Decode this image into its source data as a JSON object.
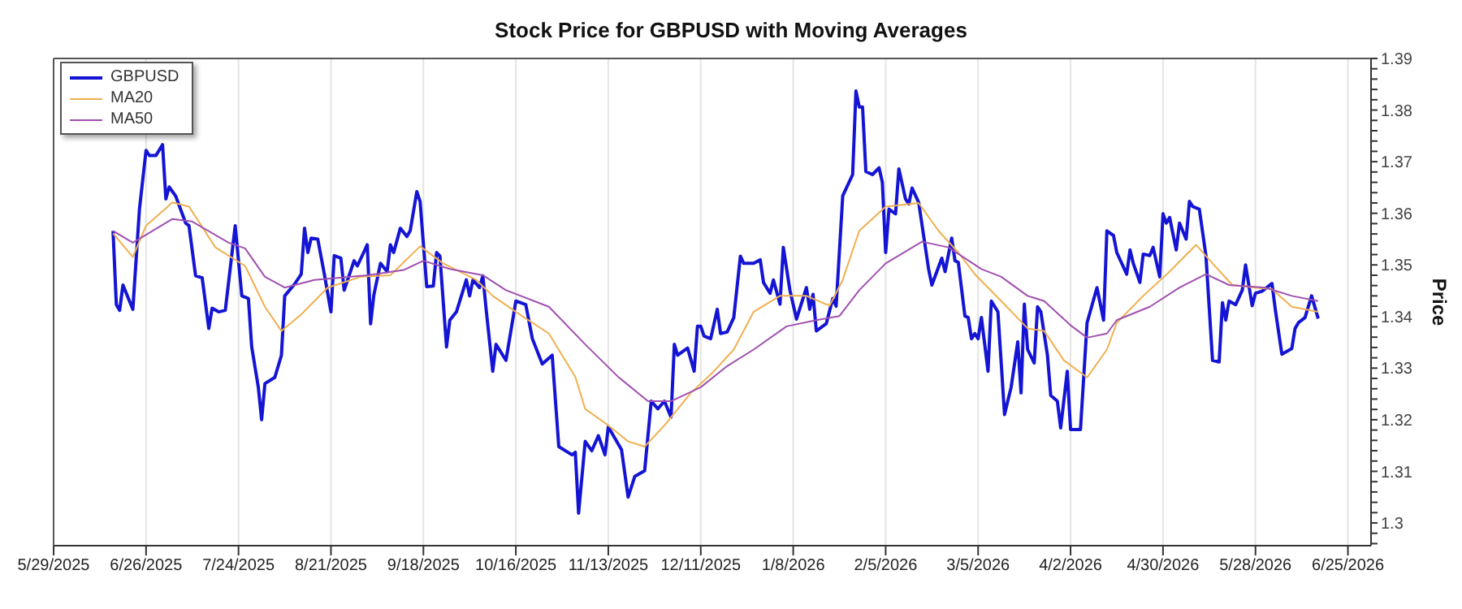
{
  "chart_data": {
    "type": "line",
    "title": "Stock Price for GBPUSD with Moving Averages",
    "ylabel": "Price",
    "xlim": [
      "2025-05-29",
      "2026-07-02"
    ],
    "ylim": [
      1.2956,
      1.39
    ],
    "xticks": [
      {
        "value": "2025-05-29",
        "label": "5/29/2025"
      },
      {
        "value": "2025-06-26",
        "label": "6/26/2025"
      },
      {
        "value": "2025-07-24",
        "label": "7/24/2025"
      },
      {
        "value": "2025-08-21",
        "label": "8/21/2025"
      },
      {
        "value": "2025-09-18",
        "label": "9/18/2025"
      },
      {
        "value": "2025-10-16",
        "label": "10/16/2025"
      },
      {
        "value": "2025-11-13",
        "label": "11/13/2025"
      },
      {
        "value": "2025-12-11",
        "label": "12/11/2025"
      },
      {
        "value": "2026-01-08",
        "label": "1/8/2026"
      },
      {
        "value": "2026-02-05",
        "label": "2/5/2026"
      },
      {
        "value": "2026-03-05",
        "label": "3/5/2026"
      },
      {
        "value": "2026-04-02",
        "label": "4/2/2026"
      },
      {
        "value": "2026-04-30",
        "label": "4/30/2026"
      },
      {
        "value": "2026-05-28",
        "label": "5/28/2026"
      },
      {
        "value": "2026-06-25",
        "label": "6/25/2026"
      }
    ],
    "yticks": [
      {
        "value": 1.296,
        "label": null
      },
      {
        "value": 1.298,
        "label": null
      },
      1.3,
      {
        "value": 1.302,
        "label": null
      },
      {
        "value": 1.304,
        "label": null
      },
      {
        "value": 1.306,
        "label": null
      },
      {
        "value": 1.308,
        "label": null
      },
      1.31,
      {
        "value": 1.312,
        "label": null
      },
      {
        "value": 1.314,
        "label": null
      },
      {
        "value": 1.316,
        "label": null
      },
      {
        "value": 1.318,
        "label": null
      },
      1.32,
      {
        "value": 1.322,
        "label": null
      },
      {
        "value": 1.324,
        "label": null
      },
      {
        "value": 1.326,
        "label": null
      },
      {
        "value": 1.328,
        "label": null
      },
      1.33,
      {
        "value": 1.332,
        "label": null
      },
      {
        "value": 1.334,
        "label": null
      },
      {
        "value": 1.336,
        "label": null
      },
      {
        "value": 1.338,
        "label": null
      },
      1.34,
      {
        "value": 1.342,
        "label": null
      },
      {
        "value": 1.344,
        "label": null
      },
      {
        "value": 1.346,
        "label": null
      },
      {
        "value": 1.348,
        "label": null
      },
      1.35,
      {
        "value": 1.352,
        "label": null
      },
      {
        "value": 1.354,
        "label": null
      },
      {
        "value": 1.356,
        "label": null
      },
      {
        "value": 1.358,
        "label": null
      },
      1.36,
      {
        "value": 1.362,
        "label": null
      },
      {
        "value": 1.364,
        "label": null
      },
      {
        "value": 1.366,
        "label": null
      },
      {
        "value": 1.368,
        "label": null
      },
      1.37,
      {
        "value": 1.372,
        "label": null
      },
      {
        "value": 1.374,
        "label": null
      },
      {
        "value": 1.376,
        "label": null
      },
      {
        "value": 1.378,
        "label": null
      },
      1.38,
      {
        "value": 1.382,
        "label": null
      },
      {
        "value": 1.384,
        "label": null
      },
      {
        "value": 1.386,
        "label": null
      },
      {
        "value": 1.388,
        "label": null
      },
      1.39
    ],
    "grid": "x",
    "legend": "top left",
    "marker": "none",
    "line_style": "solid",
    "series": [
      {
        "name": "GBPUSD",
        "color": "#1414d4",
        "x": [
          "2025-06-16",
          "2025-06-17",
          "2025-06-18",
          "2025-06-19",
          "2025-06-22",
          "2025-06-24",
          "2025-06-26",
          "2025-06-27",
          "2025-06-29",
          "2025-07-01",
          "2025-07-02",
          "2025-07-03",
          "2025-07-05",
          "2025-07-08",
          "2025-07-09",
          "2025-07-11",
          "2025-07-13",
          "2025-07-15",
          "2025-07-16",
          "2025-07-18",
          "2025-07-20",
          "2025-07-23",
          "2025-07-25",
          "2025-07-27",
          "2025-07-28",
          "2025-07-30",
          "2025-07-31",
          "2025-08-01",
          "2025-08-04",
          "2025-08-06",
          "2025-08-07",
          "2025-08-10",
          "2025-08-12",
          "2025-08-13",
          "2025-08-14",
          "2025-08-15",
          "2025-08-17",
          "2025-08-19",
          "2025-08-21",
          "2025-08-22",
          "2025-08-24",
          "2025-08-25",
          "2025-08-28",
          "2025-08-29",
          "2025-09-01",
          "2025-09-02",
          "2025-09-03",
          "2025-09-05",
          "2025-09-07",
          "2025-09-08",
          "2025-09-09",
          "2025-09-11",
          "2025-09-13",
          "2025-09-14",
          "2025-09-16",
          "2025-09-17",
          "2025-09-19",
          "2025-09-21",
          "2025-09-22",
          "2025-09-23",
          "2025-09-25",
          "2025-09-26",
          "2025-09-28",
          "2025-10-01",
          "2025-10-02",
          "2025-10-03",
          "2025-10-05",
          "2025-10-06",
          "2025-10-07",
          "2025-10-09",
          "2025-10-10",
          "2025-10-13",
          "2025-10-16",
          "2025-10-19",
          "2025-10-21",
          "2025-10-24",
          "2025-10-27",
          "2025-10-29",
          "2025-11-02",
          "2025-11-03",
          "2025-11-04",
          "2025-11-06",
          "2025-11-08",
          "2025-11-10",
          "2025-11-12",
          "2025-11-13",
          "2025-11-17",
          "2025-11-19",
          "2025-11-21",
          "2025-11-24",
          "2025-11-26",
          "2025-11-28",
          "2025-11-30",
          "2025-12-02",
          "2025-12-03",
          "2025-12-04",
          "2025-12-07",
          "2025-12-09",
          "2025-12-10",
          "2025-12-11",
          "2025-12-12",
          "2025-12-14",
          "2025-12-16",
          "2025-12-17",
          "2025-12-19",
          "2025-12-21",
          "2025-12-23",
          "2025-12-24",
          "2025-12-27",
          "2025-12-29",
          "2025-12-30",
          "2026-01-01",
          "2026-01-02",
          "2026-01-04",
          "2026-01-05",
          "2026-01-07",
          "2026-01-09",
          "2026-01-12",
          "2026-01-13",
          "2026-01-14",
          "2026-01-15",
          "2026-01-18",
          "2026-01-20",
          "2026-01-21",
          "2026-01-23",
          "2026-01-26",
          "2026-01-27",
          "2026-01-28",
          "2026-01-29",
          "2026-01-30",
          "2026-02-01",
          "2026-02-03",
          "2026-02-04",
          "2026-02-05",
          "2026-02-06",
          "2026-02-08",
          "2026-02-09",
          "2026-02-11",
          "2026-02-12",
          "2026-02-13",
          "2026-02-15",
          "2026-02-18",
          "2026-02-19",
          "2026-02-22",
          "2026-02-23",
          "2026-02-25",
          "2026-02-26",
          "2026-02-27",
          "2026-03-01",
          "2026-03-02",
          "2026-03-03",
          "2026-03-04",
          "2026-03-05",
          "2026-03-06",
          "2026-03-08",
          "2026-03-09",
          "2026-03-11",
          "2026-03-13",
          "2026-03-15",
          "2026-03-17",
          "2026-03-18",
          "2026-03-19",
          "2026-03-20",
          "2026-03-22",
          "2026-03-23",
          "2026-03-24",
          "2026-03-26",
          "2026-03-27",
          "2026-03-29",
          "2026-03-30",
          "2026-04-01",
          "2026-04-02",
          "2026-04-05",
          "2026-04-07",
          "2026-04-10",
          "2026-04-12",
          "2026-04-13",
          "2026-04-15",
          "2026-04-16",
          "2026-04-19",
          "2026-04-20",
          "2026-04-21",
          "2026-04-23",
          "2026-04-24",
          "2026-04-26",
          "2026-04-27",
          "2026-04-29",
          "2026-04-30",
          "2026-05-01",
          "2026-05-02",
          "2026-05-04",
          "2026-05-05",
          "2026-05-07",
          "2026-05-08",
          "2026-05-09",
          "2026-05-11",
          "2026-05-13",
          "2026-05-15",
          "2026-05-17",
          "2026-05-18",
          "2026-05-19",
          "2026-05-20",
          "2026-05-22",
          "2026-05-24",
          "2026-05-25",
          "2026-05-27",
          "2026-05-28",
          "2026-05-30",
          "2026-06-02",
          "2026-06-03",
          "2026-06-05",
          "2026-06-08",
          "2026-06-09",
          "2026-06-10",
          "2026-06-12",
          "2026-06-14",
          "2026-06-16"
        ],
        "values": [
          1.3566,
          1.3423,
          1.3412,
          1.3461,
          1.3414,
          1.3608,
          1.3722,
          1.3712,
          1.3712,
          1.3733,
          1.3628,
          1.3651,
          1.3633,
          1.3581,
          1.3576,
          1.3479,
          1.3475,
          1.3377,
          1.3416,
          1.3409,
          1.3412,
          1.3576,
          1.344,
          1.3435,
          1.3341,
          1.3263,
          1.32,
          1.327,
          1.3282,
          1.3325,
          1.344,
          1.3463,
          1.3482,
          1.3571,
          1.3524,
          1.3552,
          1.355,
          1.3482,
          1.3409,
          1.3518,
          1.3513,
          1.3451,
          1.3508,
          1.3498,
          1.3539,
          1.3386,
          1.3442,
          1.3503,
          1.3487,
          1.3539,
          1.3524,
          1.3571,
          1.3555,
          1.3566,
          1.3642,
          1.3623,
          1.3458,
          1.3459,
          1.3524,
          1.3517,
          1.3341,
          1.3393,
          1.3409,
          1.3471,
          1.344,
          1.3471,
          1.3456,
          1.3479,
          1.3414,
          1.3294,
          1.3346,
          1.3315,
          1.343,
          1.3423,
          1.3357,
          1.3308,
          1.3325,
          1.3148,
          1.3132,
          1.3137,
          1.3019,
          1.3158,
          1.314,
          1.3169,
          1.3132,
          1.3186,
          1.3142,
          1.305,
          1.309,
          1.3101,
          1.3236,
          1.3221,
          1.3236,
          1.3205,
          1.3346,
          1.3325,
          1.3339,
          1.3294,
          1.3381,
          1.3381,
          1.3362,
          1.3357,
          1.3414,
          1.3367,
          1.337,
          1.3398,
          1.3517,
          1.3503,
          1.3503,
          1.351,
          1.3466,
          1.3445,
          1.3471,
          1.3424,
          1.3534,
          1.3451,
          1.3395,
          1.3456,
          1.3414,
          1.3443,
          1.3372,
          1.3386,
          1.3435,
          1.342,
          1.3634,
          1.3675,
          1.3837,
          1.3806,
          1.3806,
          1.3681,
          1.3675,
          1.3688,
          1.366,
          1.3524,
          1.3608,
          1.3599,
          1.3686,
          1.3628,
          1.3618,
          1.3649,
          1.3621,
          1.3492,
          1.3461,
          1.3513,
          1.3487,
          1.3552,
          1.3508,
          1.3505,
          1.3401,
          1.3398,
          1.3357,
          1.3367,
          1.3357,
          1.3398,
          1.3294,
          1.343,
          1.3409,
          1.321,
          1.3263,
          1.3351,
          1.3252,
          1.3424,
          1.3336,
          1.331,
          1.3419,
          1.3409,
          1.3325,
          1.3247,
          1.3236,
          1.3184,
          1.3294,
          1.3181,
          1.3181,
          1.3388,
          1.3456,
          1.3393,
          1.3566,
          1.3557,
          1.3524,
          1.3482,
          1.3529,
          1.3503,
          1.3466,
          1.3521,
          1.3518,
          1.3534,
          1.3477,
          1.3599,
          1.3581,
          1.3592,
          1.3529,
          1.3581,
          1.355,
          1.3623,
          1.3613,
          1.3608,
          1.3518,
          1.3315,
          1.3312,
          1.3427,
          1.3393,
          1.343,
          1.3423,
          1.3451,
          1.35,
          1.3421,
          1.3445,
          1.3449,
          1.3464,
          1.3414,
          1.3327,
          1.3338,
          1.3377,
          1.3388,
          1.3398,
          1.344,
          1.3396
        ]
      },
      {
        "name": "MA20",
        "color": "#f0b050",
        "x": [
          "2025-06-16",
          "2025-06-22",
          "2025-06-26",
          "2025-07-04",
          "2025-07-09",
          "2025-07-17",
          "2025-07-26",
          "2025-08-01",
          "2025-08-06",
          "2025-08-12",
          "2025-08-20",
          "2025-08-30",
          "2025-09-08",
          "2025-09-17",
          "2025-09-24",
          "2025-10-04",
          "2025-10-09",
          "2025-10-16",
          "2025-10-26",
          "2025-11-03",
          "2025-11-06",
          "2025-11-13",
          "2025-11-19",
          "2025-11-24",
          "2025-11-30",
          "2025-12-08",
          "2025-12-15",
          "2025-12-21",
          "2025-12-27",
          "2026-01-04",
          "2026-01-12",
          "2026-01-19",
          "2026-01-23",
          "2026-01-28",
          "2026-02-05",
          "2026-02-15",
          "2026-02-21",
          "2026-02-27",
          "2026-03-04",
          "2026-03-12",
          "2026-03-20",
          "2026-03-25",
          "2026-03-31",
          "2026-04-07",
          "2026-04-13",
          "2026-04-16",
          "2026-04-24",
          "2026-05-02",
          "2026-05-10",
          "2026-05-15",
          "2026-05-21",
          "2026-05-28",
          "2026-06-02",
          "2026-06-08",
          "2026-06-16"
        ],
        "values": [
          1.3561,
          1.3515,
          1.3576,
          1.3621,
          1.3613,
          1.3534,
          1.3498,
          1.3419,
          1.3372,
          1.3404,
          1.3456,
          1.3477,
          1.348,
          1.3536,
          1.3503,
          1.3471,
          1.344,
          1.3409,
          1.3367,
          1.3283,
          1.3221,
          1.3189,
          1.3158,
          1.3148,
          1.3189,
          1.3252,
          1.3294,
          1.3336,
          1.3409,
          1.344,
          1.344,
          1.3421,
          1.3471,
          1.3566,
          1.3613,
          1.362,
          1.3566,
          1.3524,
          1.3482,
          1.343,
          1.3377,
          1.3372,
          1.3315,
          1.3282,
          1.3336,
          1.3388,
          1.344,
          1.3487,
          1.3539,
          1.3503,
          1.3461,
          1.3456,
          1.3453,
          1.3419,
          1.3409
        ]
      },
      {
        "name": "MA50",
        "color": "#a050b0",
        "x": [
          "2025-06-16",
          "2025-06-22",
          "2025-07-04",
          "2025-07-10",
          "2025-07-21",
          "2025-07-26",
          "2025-08-01",
          "2025-08-07",
          "2025-08-16",
          "2025-09-01",
          "2025-09-12",
          "2025-09-18",
          "2025-09-26",
          "2025-10-06",
          "2025-10-13",
          "2025-10-26",
          "2025-11-06",
          "2025-11-16",
          "2025-11-25",
          "2025-12-02",
          "2025-12-11",
          "2025-12-19",
          "2025-12-27",
          "2026-01-06",
          "2026-01-15",
          "2026-01-22",
          "2026-01-28",
          "2026-02-05",
          "2026-02-16",
          "2026-02-24",
          "2026-03-06",
          "2026-03-12",
          "2026-03-20",
          "2026-03-25",
          "2026-04-02",
          "2026-04-07",
          "2026-04-13",
          "2026-04-16",
          "2026-04-26",
          "2026-05-05",
          "2026-05-13",
          "2026-05-20",
          "2026-05-31",
          "2026-06-08",
          "2026-06-16"
        ],
        "values": [
          1.3566,
          1.3543,
          1.3589,
          1.3584,
          1.3543,
          1.3532,
          1.3477,
          1.3456,
          1.3471,
          1.348,
          1.349,
          1.3508,
          1.3492,
          1.348,
          1.3451,
          1.3419,
          1.3346,
          1.3283,
          1.3236,
          1.3236,
          1.3263,
          1.3304,
          1.3336,
          1.3381,
          1.3393,
          1.3401,
          1.3451,
          1.3503,
          1.3545,
          1.3534,
          1.3492,
          1.3477,
          1.344,
          1.343,
          1.3383,
          1.3359,
          1.3367,
          1.3393,
          1.3419,
          1.3456,
          1.3482,
          1.3461,
          1.3456,
          1.344,
          1.343
        ]
      }
    ]
  }
}
